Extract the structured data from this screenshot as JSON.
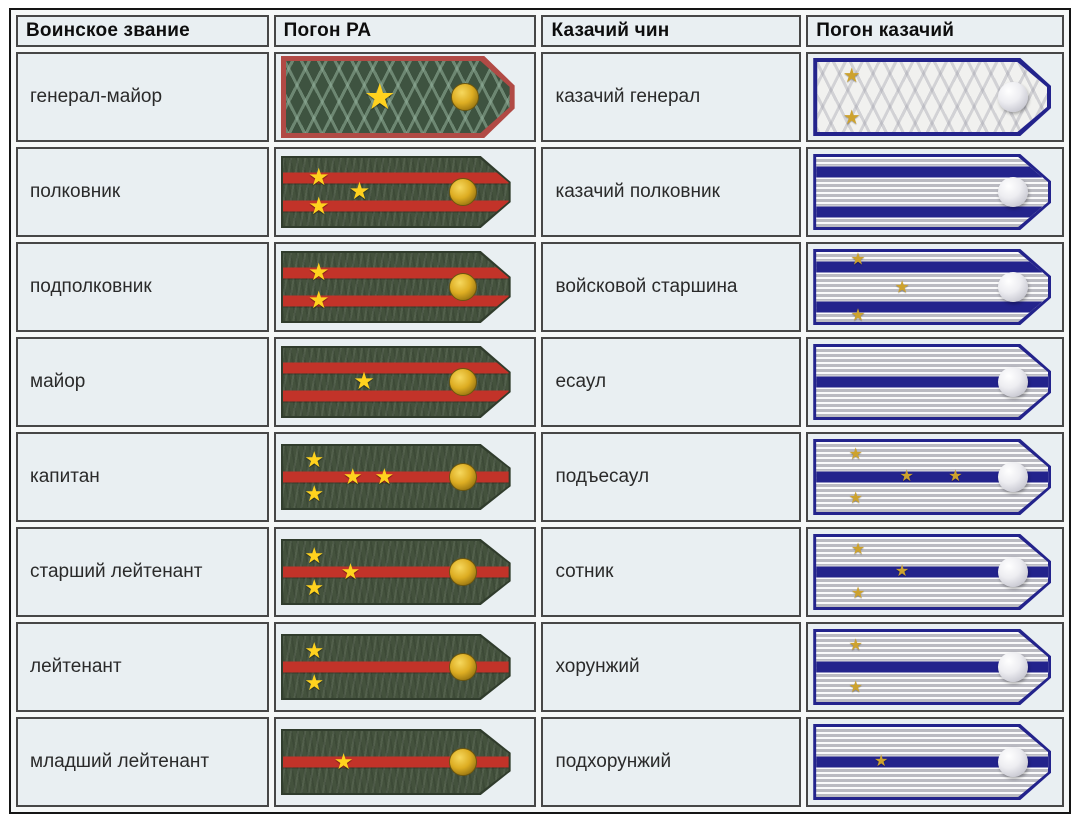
{
  "table": {
    "headers": [
      "Воинское звание",
      "Погон РА",
      "Казачий чин",
      "Погон казачий"
    ],
    "rows": [
      {
        "army_rank": "генерал-майор",
        "cossack_rank": "казачий генерал",
        "army_strap": {
          "kind": "ra-general",
          "stripes": [],
          "stars": [
            {
              "x": 42,
              "y": 50,
              "size": 36
            }
          ]
        },
        "cossack_strap": {
          "kind": "cossack-general",
          "stripes": [],
          "stars": [
            {
              "x": 15,
              "y": 20,
              "size": 20
            },
            {
              "x": 15,
              "y": 80,
              "size": 20
            }
          ]
        }
      },
      {
        "army_rank": "полковник",
        "cossack_rank": "казачий полковник",
        "army_strap": {
          "kind": "ra-field",
          "stripes": [
            30,
            70
          ],
          "stars": [
            {
              "x": 16,
              "y": 29,
              "size": 24
            },
            {
              "x": 16,
              "y": 72,
              "size": 24
            },
            {
              "x": 34,
              "y": 50,
              "size": 24
            }
          ]
        },
        "cossack_strap": {
          "kind": "cossack-field",
          "stripes": [
            21,
            79
          ],
          "stars": []
        }
      },
      {
        "army_rank": "подполковник",
        "cossack_rank": "войсковой старшина",
        "army_strap": {
          "kind": "ra-field",
          "stripes": [
            30,
            70
          ],
          "stars": [
            {
              "x": 16,
              "y": 30,
              "size": 24
            },
            {
              "x": 16,
              "y": 70,
              "size": 24
            }
          ]
        },
        "cossack_strap": {
          "kind": "cossack-field",
          "stripes": [
            21,
            79
          ],
          "stars": [
            {
              "x": 18,
              "y": 10,
              "size": 17
            },
            {
              "x": 37,
              "y": 50,
              "size": 17
            },
            {
              "x": 18,
              "y": 90,
              "size": 17
            }
          ]
        }
      },
      {
        "army_rank": "майор",
        "cossack_rank": "есаул",
        "army_strap": {
          "kind": "ra-field",
          "stripes": [
            30,
            70
          ],
          "stars": [
            {
              "x": 36,
              "y": 50,
              "size": 24
            }
          ]
        },
        "cossack_strap": {
          "kind": "cossack-field",
          "stripes": [
            50
          ],
          "stars": []
        }
      },
      {
        "army_rank": "капитан",
        "cossack_rank": "подъесаул",
        "army_strap": {
          "kind": "ra-field",
          "stripes": [
            50
          ],
          "stars": [
            {
              "x": 14,
              "y": 22,
              "size": 22
            },
            {
              "x": 14,
              "y": 78,
              "size": 22
            },
            {
              "x": 31,
              "y": 50,
              "size": 22
            },
            {
              "x": 45,
              "y": 50,
              "size": 22
            }
          ]
        },
        "cossack_strap": {
          "kind": "cossack-field",
          "stripes": [
            50
          ],
          "stars": [
            {
              "x": 17,
              "y": 18,
              "size": 16
            },
            {
              "x": 39,
              "y": 50,
              "size": 16
            },
            {
              "x": 60,
              "y": 50,
              "size": 16
            },
            {
              "x": 17,
              "y": 82,
              "size": 16
            }
          ]
        }
      },
      {
        "army_rank": "старший лейтенант",
        "cossack_rank": "сотник",
        "army_strap": {
          "kind": "ra-field",
          "stripes": [
            50
          ],
          "stars": [
            {
              "x": 14,
              "y": 24,
              "size": 22
            },
            {
              "x": 14,
              "y": 76,
              "size": 22
            },
            {
              "x": 30,
              "y": 50,
              "size": 22
            }
          ]
        },
        "cossack_strap": {
          "kind": "cossack-field",
          "stripes": [
            50
          ],
          "stars": [
            {
              "x": 18,
              "y": 18,
              "size": 16
            },
            {
              "x": 37,
              "y": 50,
              "size": 16
            },
            {
              "x": 18,
              "y": 82,
              "size": 16
            }
          ]
        }
      },
      {
        "army_rank": "лейтенант",
        "cossack_rank": "хорунжий",
        "army_strap": {
          "kind": "ra-field",
          "stripes": [
            50
          ],
          "stars": [
            {
              "x": 14,
              "y": 24,
              "size": 22
            },
            {
              "x": 14,
              "y": 76,
              "size": 22
            }
          ]
        },
        "cossack_strap": {
          "kind": "cossack-field",
          "stripes": [
            50
          ],
          "stars": [
            {
              "x": 17,
              "y": 20,
              "size": 16
            },
            {
              "x": 17,
              "y": 80,
              "size": 16
            }
          ]
        }
      },
      {
        "army_rank": "младший лейтенант",
        "cossack_rank": "подхорунжий",
        "army_strap": {
          "kind": "ra-field",
          "stripes": [
            50
          ],
          "stars": [
            {
              "x": 27,
              "y": 50,
              "size": 22
            }
          ]
        },
        "cossack_strap": {
          "kind": "cossack-field",
          "stripes": [
            50
          ],
          "stars": [
            {
              "x": 28,
              "y": 50,
              "size": 16
            }
          ]
        }
      }
    ]
  },
  "glyphs": {
    "star": "★"
  },
  "colors": {
    "cell_bg": "#e9eff2",
    "cell_border": "#474747",
    "table_border": "#151515",
    "ra_green": "#44523d",
    "ra_green_dark": "#3e5340",
    "ra_red": "#c23329",
    "ra_border_red": "#b14a45",
    "cossack_blue": "#23238c",
    "star_gold_bright": "#ffd21e",
    "star_gold_dark": "#cda22e"
  }
}
